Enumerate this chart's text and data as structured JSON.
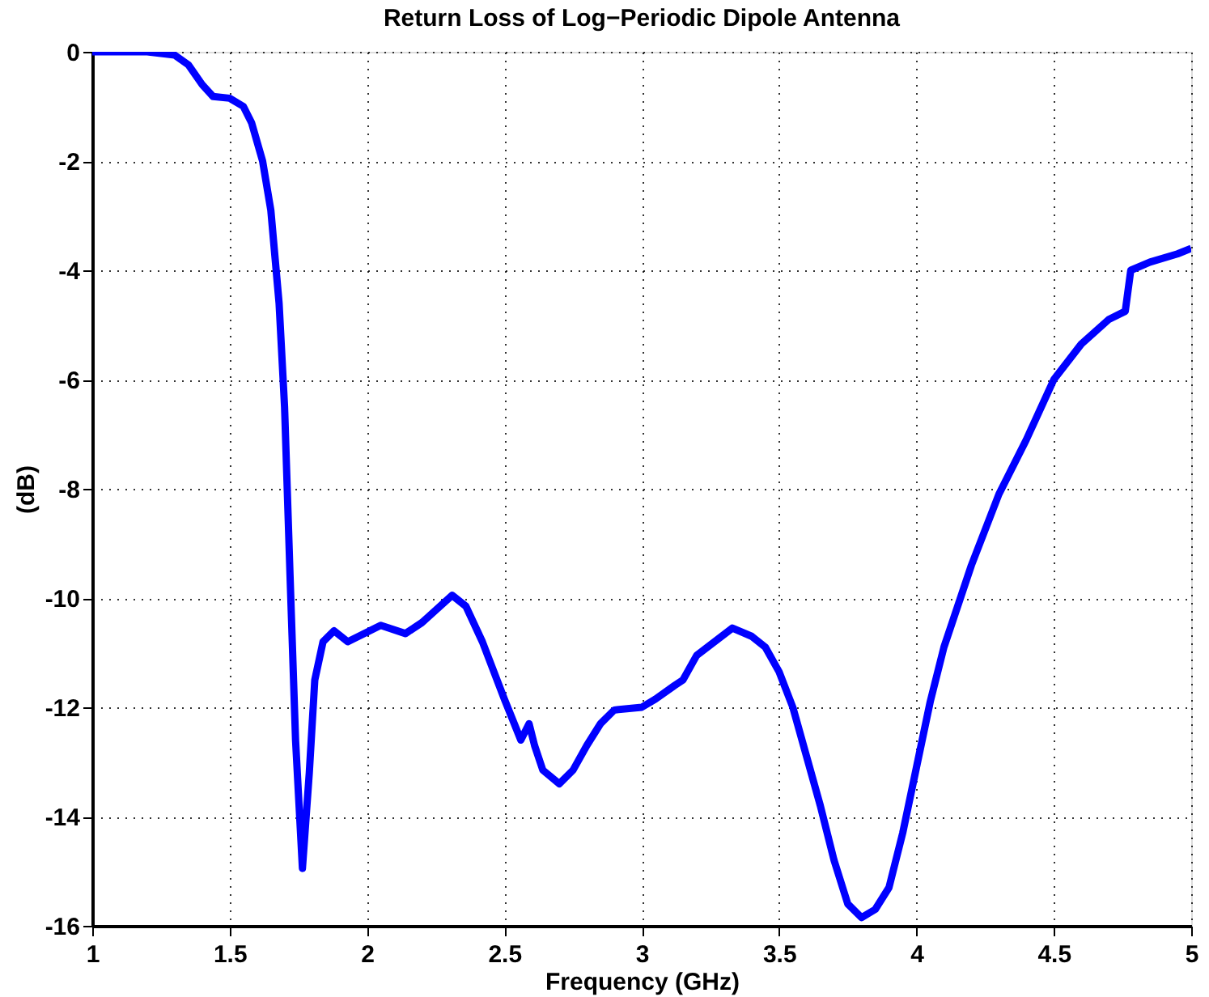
{
  "chart_data": {
    "type": "line",
    "title": "Return Loss of Log−Periodic Dipole Antenna",
    "xlabel": "Frequency (GHz)",
    "ylabel": "(dB)",
    "series": [
      {
        "color": "#0000ff",
        "x": [
          1.0,
          1.2,
          1.3,
          1.35,
          1.4,
          1.44,
          1.5,
          1.55,
          1.58,
          1.62,
          1.65,
          1.68,
          1.7,
          1.72,
          1.74,
          1.765,
          1.79,
          1.81,
          1.84,
          1.88,
          1.93,
          2.05,
          2.14,
          2.2,
          2.31,
          2.36,
          2.42,
          2.5,
          2.56,
          2.59,
          2.61,
          2.64,
          2.7,
          2.75,
          2.8,
          2.85,
          2.9,
          3.0,
          3.05,
          3.12,
          3.15,
          3.2,
          3.33,
          3.4,
          3.45,
          3.5,
          3.55,
          3.6,
          3.65,
          3.7,
          3.75,
          3.8,
          3.85,
          3.9,
          3.95,
          4.0,
          4.05,
          4.1,
          4.2,
          4.3,
          4.4,
          4.5,
          4.6,
          4.7,
          4.76,
          4.78,
          4.85,
          4.95,
          5.0
        ],
        "values": [
          0,
          0,
          -0.06,
          -0.24,
          -0.6,
          -0.82,
          -0.85,
          -1.0,
          -1.3,
          -2.0,
          -2.9,
          -4.6,
          -6.5,
          -9.6,
          -12.6,
          -14.95,
          -13.2,
          -11.5,
          -10.8,
          -10.6,
          -10.8,
          -10.5,
          -10.65,
          -10.45,
          -9.95,
          -10.15,
          -10.8,
          -11.85,
          -12.6,
          -12.3,
          -12.7,
          -13.15,
          -13.4,
          -13.15,
          -12.7,
          -12.3,
          -12.05,
          -12.0,
          -11.85,
          -11.6,
          -11.5,
          -11.05,
          -10.55,
          -10.7,
          -10.9,
          -11.35,
          -12.0,
          -12.9,
          -13.8,
          -14.8,
          -15.6,
          -15.85,
          -15.7,
          -15.3,
          -14.3,
          -13.1,
          -11.9,
          -10.9,
          -9.4,
          -8.1,
          -7.1,
          -6.0,
          -5.35,
          -4.9,
          -4.75,
          -4.0,
          -3.85,
          -3.7,
          -3.6
        ]
      }
    ],
    "xlim": [
      1,
      5
    ],
    "xticks": [
      1,
      1.5,
      2,
      2.5,
      3,
      3.5,
      4,
      4.5,
      5
    ],
    "ylim": [
      -16,
      0
    ],
    "yticks": [
      -16,
      -14,
      -12,
      -10,
      -8,
      -6,
      -4,
      -2,
      0
    ],
    "grid": true,
    "marker": "none",
    "line_style": "solid"
  }
}
